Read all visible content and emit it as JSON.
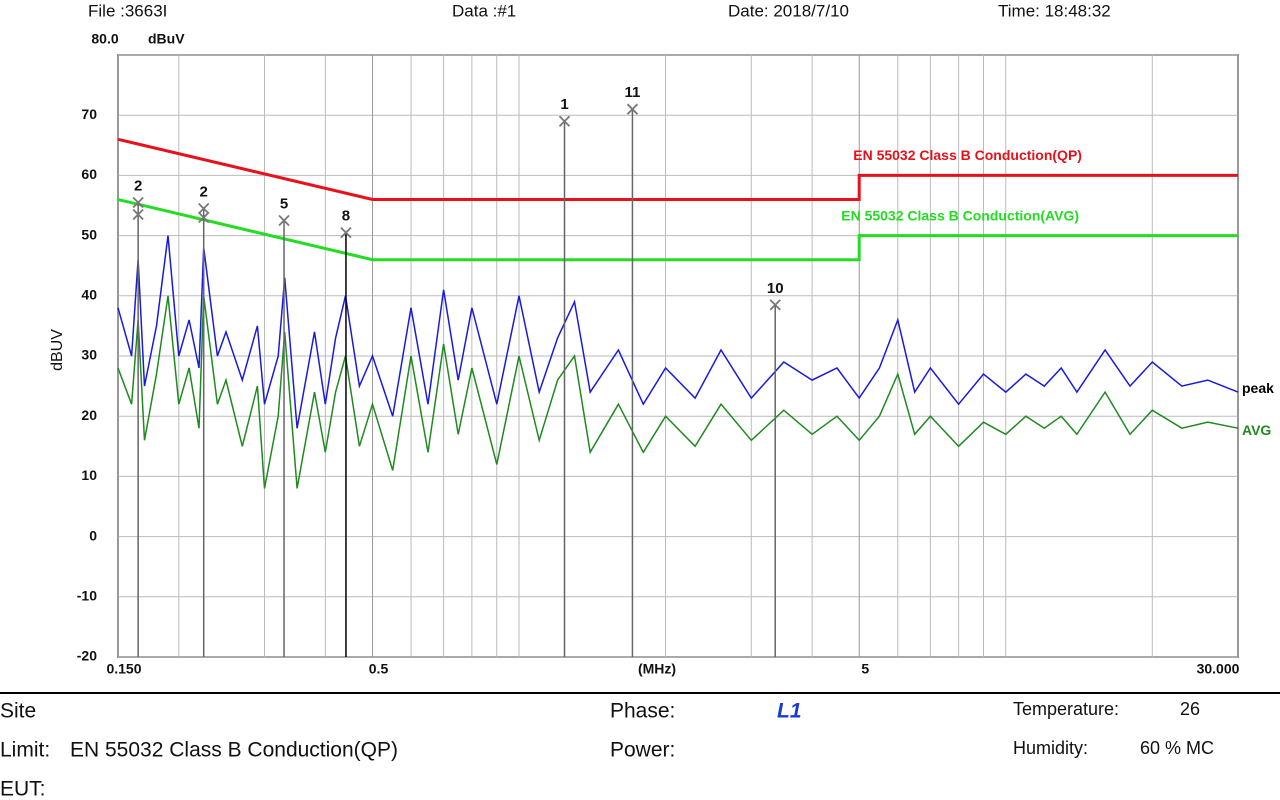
{
  "header": {
    "file": "File :3663I",
    "data": "Data :#1",
    "date": "Date: 2018/7/10",
    "time": "Time: 18:48:32"
  },
  "chart_data": {
    "type": "line",
    "xlog": true,
    "grid": true,
    "y_unit": "dBuV",
    "y_label": "dBUV",
    "x_unit": "(MHz)",
    "xlim": [
      0.15,
      30
    ],
    "ylim": [
      -20,
      80
    ],
    "xticks": [
      {
        "value": 0.15,
        "label": "0.150"
      },
      0.5,
      5,
      {
        "value": 30,
        "label": "30.000"
      }
    ],
    "xminor": [
      0.2,
      0.3,
      0.4,
      0.6,
      0.7,
      0.8,
      0.9,
      1,
      2,
      3,
      4,
      6,
      7,
      8,
      9,
      10,
      20
    ],
    "yticks": [
      {
        "value": 80,
        "label": "80.0"
      },
      70,
      60,
      50,
      40,
      30,
      20,
      10,
      0,
      -10,
      -20
    ],
    "series": [
      {
        "name": "EN 55032 Class B Conduction(QP)",
        "color": "#e8111b",
        "x": [
          0.15,
          0.5,
          5,
          5,
          30
        ],
        "values": [
          66,
          56,
          56,
          60,
          60
        ]
      },
      {
        "name": "EN 55032 Class B Conduction(AVG)",
        "color": "#22dd22",
        "x": [
          0.15,
          0.5,
          5,
          5,
          30
        ],
        "values": [
          56,
          46,
          46,
          50,
          50
        ]
      },
      {
        "name": "peak",
        "color": "#1a1adc",
        "x": [
          0.15,
          0.16,
          0.165,
          0.17,
          0.18,
          0.19,
          0.2,
          0.21,
          0.22,
          0.225,
          0.24,
          0.25,
          0.27,
          0.29,
          0.3,
          0.32,
          0.33,
          0.35,
          0.38,
          0.4,
          0.42,
          0.44,
          0.47,
          0.5,
          0.55,
          0.6,
          0.65,
          0.7,
          0.75,
          0.8,
          0.9,
          1.0,
          1.1,
          1.2,
          1.3,
          1.4,
          1.6,
          1.8,
          2.0,
          2.3,
          2.6,
          3.0,
          3.5,
          4,
          4.5,
          5,
          5.5,
          6,
          6.5,
          7,
          8,
          9,
          10,
          11,
          12,
          13,
          14,
          16,
          18,
          20,
          23,
          26,
          30
        ],
        "values": [
          38,
          30,
          46,
          25,
          35,
          50,
          30,
          36,
          28,
          48,
          30,
          34,
          26,
          35,
          22,
          30,
          43,
          18,
          34,
          22,
          33,
          40,
          25,
          30,
          20,
          38,
          22,
          41,
          26,
          38,
          22,
          40,
          24,
          33,
          39,
          24,
          31,
          22,
          28,
          23,
          31,
          23,
          29,
          26,
          28,
          23,
          28,
          36,
          24,
          28,
          22,
          27,
          24,
          27,
          25,
          28,
          24,
          31,
          25,
          29,
          25,
          26,
          24
        ]
      },
      {
        "name": "AVG",
        "color": "#1f8a1f",
        "x": [
          0.15,
          0.16,
          0.165,
          0.17,
          0.18,
          0.19,
          0.2,
          0.21,
          0.22,
          0.225,
          0.24,
          0.25,
          0.27,
          0.29,
          0.3,
          0.32,
          0.33,
          0.35,
          0.38,
          0.4,
          0.42,
          0.44,
          0.47,
          0.5,
          0.55,
          0.6,
          0.65,
          0.7,
          0.75,
          0.8,
          0.9,
          1.0,
          1.1,
          1.2,
          1.3,
          1.4,
          1.6,
          1.8,
          2.0,
          2.3,
          2.6,
          3.0,
          3.5,
          4,
          4.5,
          5,
          5.5,
          6,
          6.5,
          7,
          8,
          9,
          10,
          11,
          12,
          13,
          14,
          16,
          18,
          20,
          23,
          26,
          30
        ],
        "values": [
          28,
          22,
          36,
          16,
          27,
          40,
          22,
          28,
          18,
          40,
          22,
          26,
          15,
          25,
          8,
          20,
          34,
          8,
          24,
          14,
          24,
          30,
          15,
          22,
          11,
          30,
          14,
          32,
          17,
          28,
          12,
          30,
          16,
          26,
          30,
          14,
          22,
          14,
          20,
          15,
          22,
          16,
          21,
          17,
          20,
          16,
          20,
          27,
          17,
          20,
          15,
          19,
          17,
          20,
          18,
          20,
          17,
          24,
          17,
          21,
          18,
          19,
          18
        ]
      }
    ],
    "markers": [
      {
        "label": "2",
        "x": 0.165,
        "y": [
          55.5,
          53.5
        ]
      },
      {
        "label": "2",
        "x": 0.225,
        "y": [
          54.5,
          53
        ]
      },
      {
        "label": "5",
        "x": 0.329,
        "y": [
          52.5
        ]
      },
      {
        "label": "8",
        "x": 0.441,
        "y": [
          50.5
        ]
      },
      {
        "label": "1",
        "x": 1.24,
        "y": [
          69
        ]
      },
      {
        "label": "11",
        "x": 1.71,
        "y": [
          71
        ]
      },
      {
        "label": "10",
        "x": 3.36,
        "y": [
          38.5
        ]
      }
    ]
  },
  "footer": {
    "site": "Site",
    "limit_label": "Limit:",
    "limit": "EN 55032 Class B Conduction(QP)",
    "eut": "EUT:",
    "phase_label": "Phase:",
    "phase": "L1",
    "power_label": "Power:",
    "temperature_label": "Temperature:",
    "temperature": "26",
    "humidity_label": "Humidity:",
    "humidity": "60 % MC"
  }
}
